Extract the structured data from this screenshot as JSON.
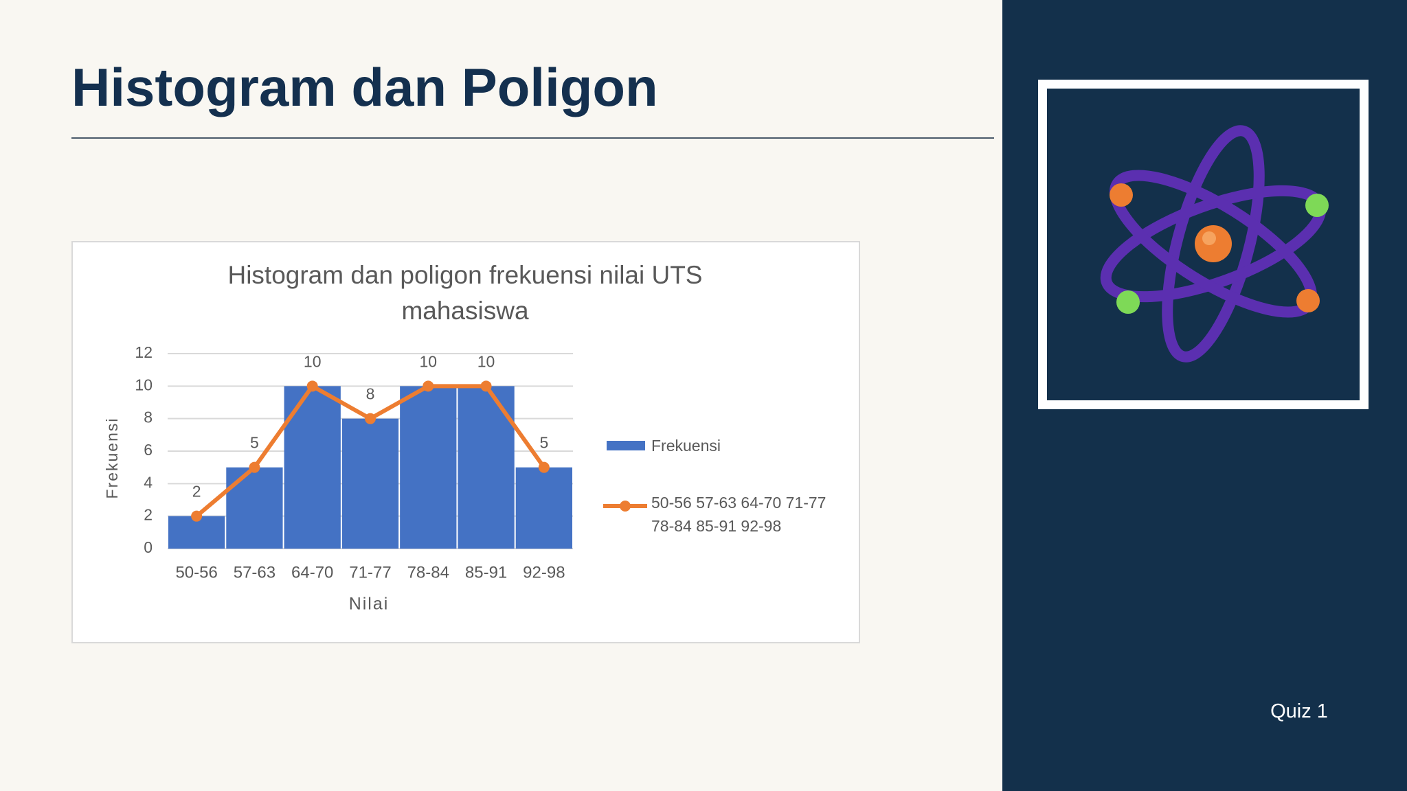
{
  "slide": {
    "title": "Histogram dan Poligon",
    "footer": "Quiz 1"
  },
  "chart_data": {
    "type": "bar",
    "title": "Histogram dan poligon frekuensi nilai UTS mahasiswa",
    "x_label": "Nilai",
    "y_label": "Frekuensi",
    "categories": [
      "50-56",
      "57-63",
      "64-70",
      "71-77",
      "78-84",
      "85-91",
      "92-98"
    ],
    "series": [
      {
        "name": "Frekuensi",
        "type": "bar",
        "color": "#4472c4",
        "values": [
          2,
          5,
          10,
          8,
          10,
          10,
          5
        ]
      },
      {
        "name": "50-56 57-63 64-70 71-77 78-84 85-91 92-98",
        "type": "line",
        "color": "#ed7d31",
        "values": [
          2,
          5,
          10,
          8,
          10,
          10,
          5
        ]
      }
    ],
    "ylim": [
      0,
      12
    ],
    "yticks": [
      0,
      2,
      4,
      6,
      8,
      10,
      12
    ],
    "grid": true
  }
}
